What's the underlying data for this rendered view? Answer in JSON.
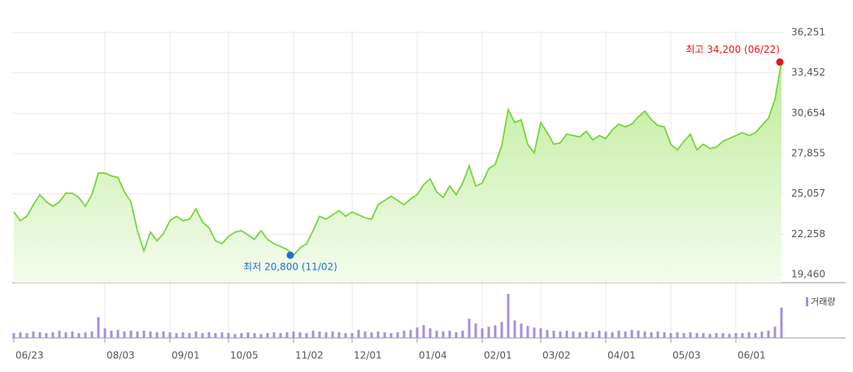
{
  "chart_data": {
    "type": "line",
    "categories": [
      "06/23",
      null,
      null,
      null,
      null,
      null,
      null,
      null,
      null,
      null,
      null,
      null,
      null,
      null,
      "08/03",
      null,
      null,
      null,
      null,
      null,
      null,
      null,
      null,
      null,
      "09/01",
      null,
      null,
      null,
      null,
      null,
      null,
      null,
      null,
      "10/05",
      null,
      null,
      null,
      null,
      null,
      null,
      null,
      null,
      null,
      "11/02",
      null,
      null,
      null,
      null,
      null,
      null,
      null,
      null,
      "12/01",
      null,
      null,
      null,
      null,
      null,
      null,
      null,
      null,
      null,
      "01/04",
      null,
      null,
      null,
      null,
      null,
      null,
      null,
      null,
      null,
      "02/01",
      null,
      null,
      null,
      null,
      null,
      null,
      null,
      null,
      "03/02",
      null,
      null,
      null,
      null,
      null,
      null,
      null,
      null,
      null,
      "04/01",
      null,
      null,
      null,
      null,
      null,
      null,
      null,
      null,
      null,
      "05/03",
      null,
      null,
      null,
      null,
      null,
      null,
      null,
      null,
      null,
      "06/01",
      null,
      null,
      null,
      null,
      null,
      null,
      null
    ],
    "series": [
      {
        "color": "#78d43c",
        "fill": "#c9f1aa",
        "values": [
          23800,
          23200,
          23500,
          24300,
          25000,
          24500,
          24200,
          24500,
          25100,
          25100,
          24800,
          24200,
          25000,
          26500,
          26500,
          26300,
          26200,
          25200,
          24500,
          22500,
          21100,
          22400,
          21800,
          22300,
          23200,
          23500,
          23200,
          23300,
          24000,
          23100,
          22700,
          21800,
          21600,
          22100,
          22400,
          22500,
          22200,
          21900,
          22500,
          21900,
          21600,
          21400,
          21200,
          20800,
          21300,
          21600,
          22500,
          23500,
          23300,
          23600,
          23900,
          23500,
          23800,
          23600,
          23400,
          23300,
          24300,
          24600,
          24900,
          24600,
          24300,
          24700,
          25000,
          25700,
          26100,
          25200,
          24800,
          25600,
          25000,
          25800,
          27000,
          25600,
          25800,
          26800,
          27100,
          28400,
          30900,
          30000,
          30200,
          28500,
          27900,
          30000,
          29300,
          28500,
          28600,
          29200,
          29100,
          29000,
          29400,
          28800,
          29100,
          28900,
          29500,
          29900,
          29700,
          29900,
          30400,
          30800,
          30200,
          29800,
          29700,
          28500,
          28100,
          28700,
          29200,
          28100,
          28500,
          28200,
          28300,
          28700,
          28900,
          29100,
          29300,
          29100,
          29300,
          29800,
          30300,
          31600,
          34200
        ]
      },
      {
        "name": "거래량",
        "color": "#a58fdc",
        "axis": "volume",
        "values": [
          6,
          7,
          6,
          8,
          7,
          6,
          7,
          9,
          7,
          8,
          6,
          7,
          8,
          26,
          12,
          9,
          10,
          8,
          9,
          8,
          9,
          8,
          7,
          8,
          7,
          6,
          7,
          6,
          8,
          6,
          7,
          6,
          7,
          6,
          5,
          6,
          7,
          6,
          5,
          6,
          7,
          6,
          7,
          8,
          7,
          6,
          9,
          8,
          7,
          8,
          7,
          6,
          6,
          10,
          8,
          7,
          8,
          7,
          6,
          7,
          9,
          10,
          13,
          16,
          12,
          9,
          8,
          9,
          7,
          9,
          24,
          18,
          12,
          14,
          16,
          20,
          55,
          22,
          18,
          15,
          13,
          12,
          10,
          9,
          8,
          9,
          8,
          7,
          8,
          7,
          9,
          8,
          7,
          9,
          8,
          10,
          9,
          8,
          7,
          8,
          7,
          6,
          7,
          6,
          7,
          6,
          6,
          5,
          6,
          6,
          5,
          6,
          6,
          7,
          6,
          8,
          9,
          14,
          38
        ]
      }
    ],
    "ylim": [
      19460,
      36251
    ],
    "yticks": [
      {
        "value": 19460,
        "label": "19,460"
      },
      {
        "value": 22258,
        "label": "22,258"
      },
      {
        "value": 25057,
        "label": "25,057"
      },
      {
        "value": 27855,
        "label": "27,855"
      },
      {
        "value": 30654,
        "label": "30,654"
      },
      {
        "value": 33452,
        "label": "33,452"
      },
      {
        "value": 36251,
        "label": "36,251"
      }
    ],
    "grid": true,
    "annotations": [
      {
        "text": "최고 34,200 (06/22)",
        "color": "#e8141e"
      },
      {
        "text": "최저 20,800 (11/02)",
        "color": "#1e6fd8"
      }
    ]
  }
}
